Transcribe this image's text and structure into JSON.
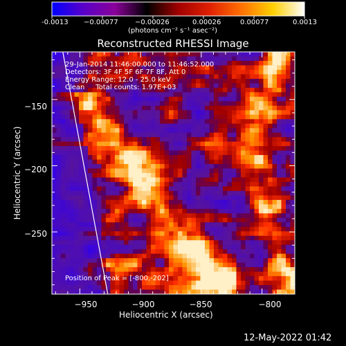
{
  "colorbar": {
    "ticks": [
      "-0.0013",
      "−0.00077",
      "−0.00026",
      "0.00026",
      "0.00077",
      "0.0013"
    ],
    "unit_label": "(photons cm⁻² s⁻¹ asec⁻²)",
    "stops": [
      "#0000ff",
      "#5a00c8",
      "#8a009a",
      "#000000",
      "#a00000",
      "#e02000",
      "#ff7000",
      "#ffd000",
      "#ffffff"
    ]
  },
  "chart_data": {
    "type": "heatmap",
    "title": "Reconstructed RHESSI Image",
    "xlabel": "Heliocentric X (arcsec)",
    "ylabel": "Heliocentric Y (arcsec)",
    "xlim": [
      -973,
      -773
    ],
    "ylim": [
      -297,
      -114
    ],
    "x_ticks": [
      -950,
      -900,
      -850,
      -800
    ],
    "y_ticks": [
      -150,
      -200,
      -250
    ],
    "x_tick_labels": [
      "−950",
      "−900",
      "−850",
      "−800"
    ],
    "y_tick_labels": [
      "−150",
      "−200",
      "−250"
    ],
    "annotations": [
      "29-Jan-2014 11:46:00.000 to 11:46:52.000",
      "Detectors: 3F 4F 5F 6F 7F 8F, Att 0",
      "Energy Range: 12.0 - 25.0 keV",
      "Clean     Total counts: 1.97E+03"
    ],
    "peak_label": "Position of Peak = [-800,-202]",
    "peak": [
      -800,
      -202
    ],
    "limb_line": [
      [
        -964,
        -114
      ],
      [
        -927,
        -297
      ]
    ]
  },
  "datestamp": "12-May-2022 01:42"
}
